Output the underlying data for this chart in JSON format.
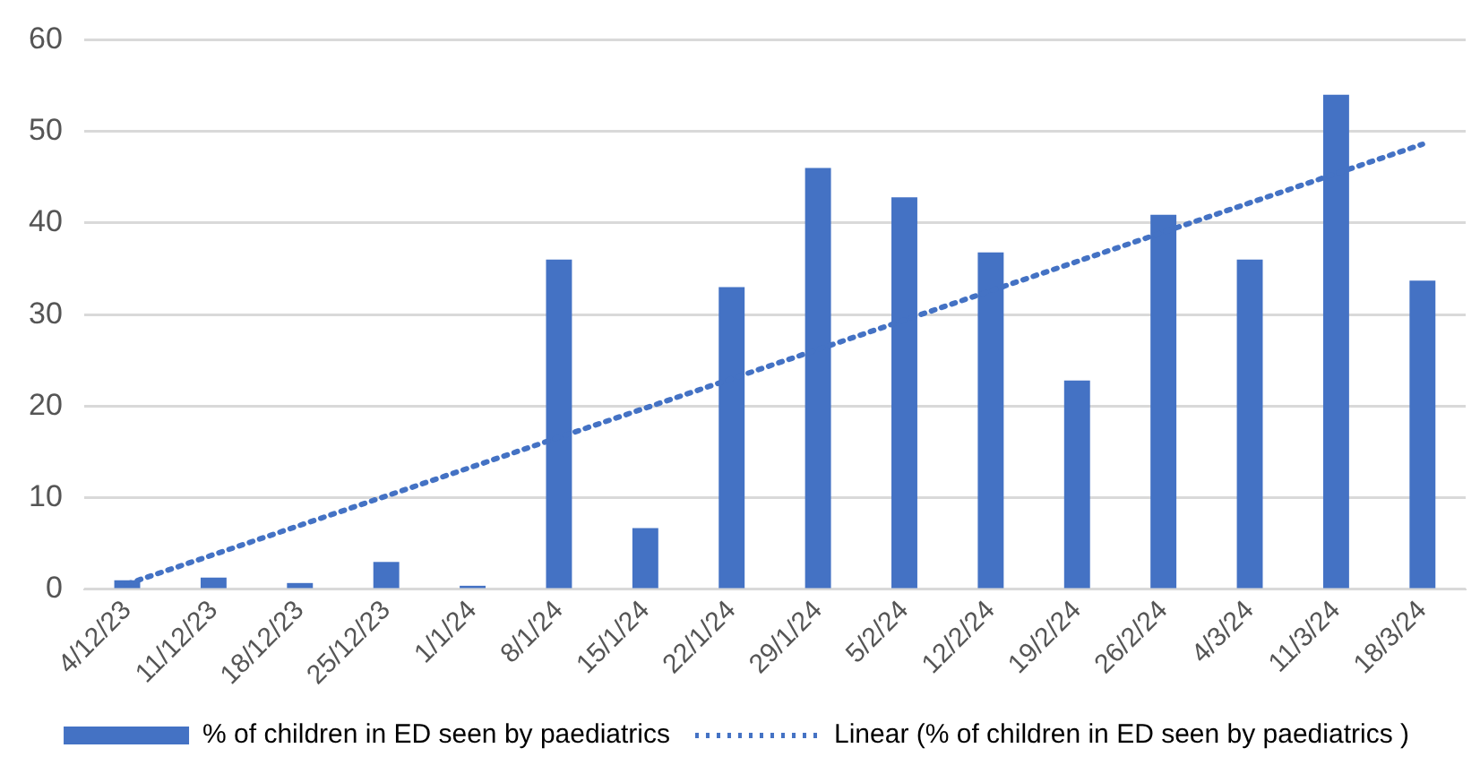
{
  "chart_data": {
    "type": "bar",
    "categories": [
      "4/12/23",
      "11/12/23",
      "18/12/23",
      "25/12/23",
      "1/1/24",
      "8/1/24",
      "15/1/24",
      "22/1/24",
      "29/1/24",
      "5/2/24",
      "12/2/24",
      "19/2/24",
      "26/2/24",
      "4/3/24",
      "11/3/24",
      "18/3/24"
    ],
    "series": [
      {
        "name": "% of children in ED seen by paediatrics",
        "color": "#4472c4",
        "values": [
          1,
          1.3,
          0.7,
          3,
          0.4,
          36,
          6.7,
          33,
          46,
          42.8,
          36.8,
          22.8,
          40.9,
          36,
          54,
          33.7
        ]
      },
      {
        "name": "Linear (% of children in ED seen by paediatrics )",
        "type": "line",
        "color": "#4472c4",
        "x": [
          "4/12/23",
          "18/3/24"
        ],
        "values": [
          0.6,
          48.6
        ],
        "line_style": "dotted",
        "marker": "none"
      }
    ],
    "ylim": [
      0,
      60
    ],
    "yticks": [
      0,
      10,
      20,
      30,
      40,
      50,
      60
    ],
    "grid": "y",
    "legend": "bottom"
  }
}
